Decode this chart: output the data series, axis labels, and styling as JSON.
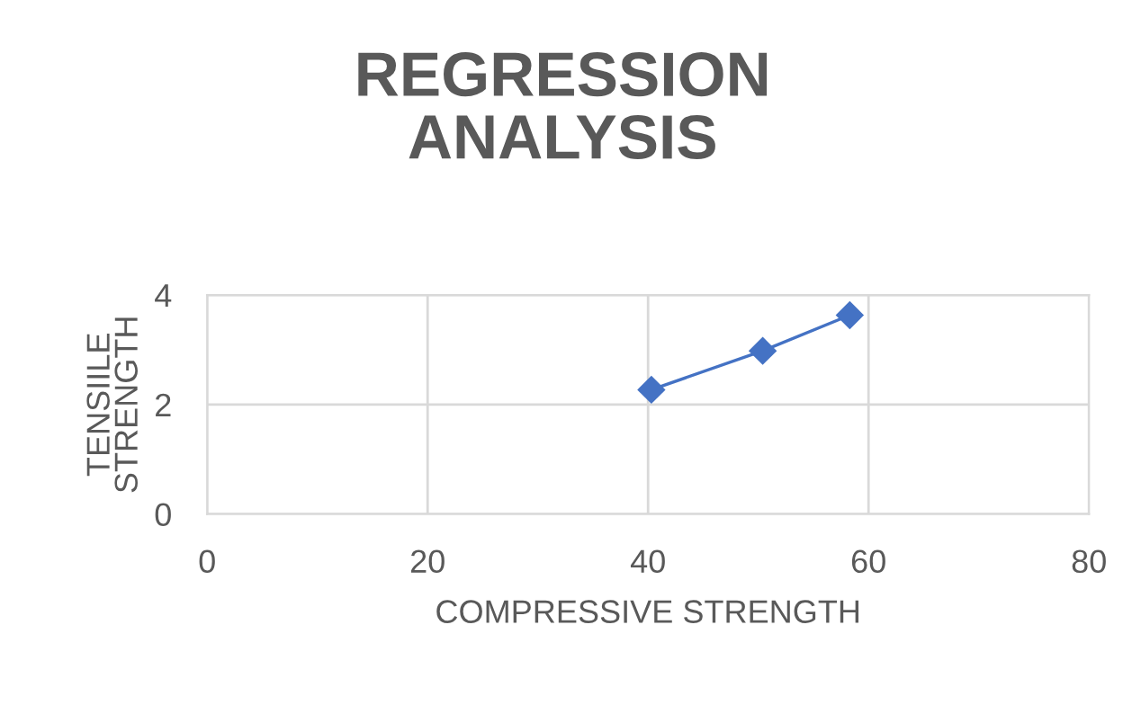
{
  "chart_data": {
    "type": "line",
    "title": "REGRESSION\nANALYSIS",
    "xlabel": "COMPRESSIVE STRENGTH",
    "ylabel": "TENSIILE\nSTRENGTH",
    "x": [
      40.3,
      50.4,
      58.3
    ],
    "series": [
      {
        "color": "#4472c4",
        "values": [
          2.27,
          2.98,
          3.63
        ]
      }
    ],
    "xlim": [
      0,
      80
    ],
    "xticks": [
      0,
      20,
      40,
      60,
      80
    ],
    "ylim": [
      0,
      4
    ],
    "yticks": [
      0,
      2,
      4
    ],
    "grid": true,
    "marker": "diamond",
    "line_style": "solid"
  }
}
